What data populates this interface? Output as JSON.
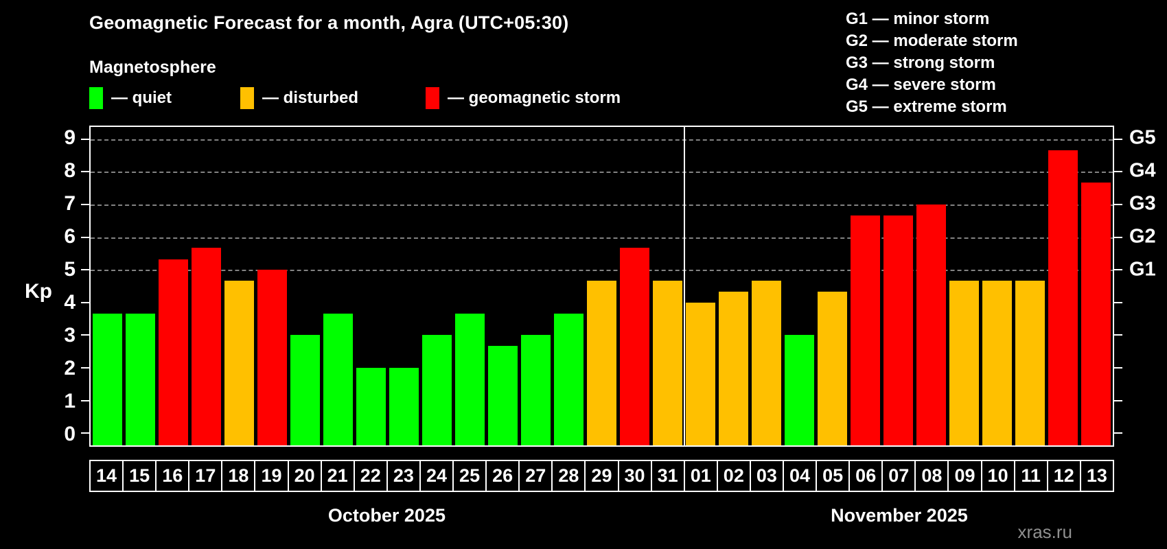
{
  "header": {
    "title": "Geomagnetic Forecast for a month, Agra (UTC+05:30)",
    "subtitle": "Magnetosphere"
  },
  "legend": {
    "items": [
      {
        "key": "quiet",
        "label": "— quiet",
        "color": "#00ff00"
      },
      {
        "key": "disturbed",
        "label": "— disturbed",
        "color": "#ffc000"
      },
      {
        "key": "storm",
        "label": "— geomagnetic storm",
        "color": "#ff0000"
      }
    ]
  },
  "g_legend": [
    "G1 — minor storm",
    "G2 — moderate storm",
    "G3 — strong storm",
    "G4 — severe storm",
    "G5 — extreme storm"
  ],
  "watermark": "xras.ru",
  "chart_data": {
    "type": "bar",
    "title": "Geomagnetic Forecast for a month, Agra (UTC+05:30)",
    "ylabel": "Kp",
    "ylim": [
      -0.375,
      9.375
    ],
    "grid": "dashed horizontal at Kp 5-9 only",
    "y_ticks": [
      0,
      1,
      2,
      3,
      4,
      5,
      6,
      7,
      8,
      9
    ],
    "gridlines_at": [
      5,
      6,
      7,
      8,
      9
    ],
    "right_ticks": [
      {
        "value": 5,
        "label": "G1"
      },
      {
        "value": 6,
        "label": "G2"
      },
      {
        "value": 7,
        "label": "G3"
      },
      {
        "value": 8,
        "label": "G4"
      },
      {
        "value": 9,
        "label": "G5"
      }
    ],
    "status_colors": {
      "quiet": "#00ff00",
      "disturbed": "#ffc000",
      "storm": "#ff0000"
    },
    "months": [
      {
        "label": "October 2025",
        "days": 18
      },
      {
        "label": "November 2025",
        "days": 13
      }
    ],
    "bars": [
      {
        "day": "14",
        "value": 3.67,
        "status": "quiet"
      },
      {
        "day": "15",
        "value": 3.67,
        "status": "quiet"
      },
      {
        "day": "16",
        "value": 5.33,
        "status": "storm"
      },
      {
        "day": "17",
        "value": 5.67,
        "status": "storm"
      },
      {
        "day": "18",
        "value": 4.67,
        "status": "disturbed"
      },
      {
        "day": "19",
        "value": 5.0,
        "status": "storm"
      },
      {
        "day": "20",
        "value": 3.0,
        "status": "quiet"
      },
      {
        "day": "21",
        "value": 3.67,
        "status": "quiet"
      },
      {
        "day": "22",
        "value": 2.0,
        "status": "quiet"
      },
      {
        "day": "23",
        "value": 2.0,
        "status": "quiet"
      },
      {
        "day": "24",
        "value": 3.0,
        "status": "quiet"
      },
      {
        "day": "25",
        "value": 3.67,
        "status": "quiet"
      },
      {
        "day": "26",
        "value": 2.67,
        "status": "quiet"
      },
      {
        "day": "27",
        "value": 3.0,
        "status": "quiet"
      },
      {
        "day": "28",
        "value": 3.67,
        "status": "quiet"
      },
      {
        "day": "29",
        "value": 4.67,
        "status": "disturbed"
      },
      {
        "day": "30",
        "value": 5.67,
        "status": "storm"
      },
      {
        "day": "31",
        "value": 4.67,
        "status": "disturbed"
      },
      {
        "day": "01",
        "value": 4.0,
        "status": "disturbed"
      },
      {
        "day": "02",
        "value": 4.33,
        "status": "disturbed"
      },
      {
        "day": "03",
        "value": 4.67,
        "status": "disturbed"
      },
      {
        "day": "04",
        "value": 3.0,
        "status": "quiet"
      },
      {
        "day": "05",
        "value": 4.33,
        "status": "disturbed"
      },
      {
        "day": "06",
        "value": 6.67,
        "status": "storm"
      },
      {
        "day": "07",
        "value": 6.67,
        "status": "storm"
      },
      {
        "day": "08",
        "value": 7.0,
        "status": "storm"
      },
      {
        "day": "09",
        "value": 4.67,
        "status": "disturbed"
      },
      {
        "day": "10",
        "value": 4.67,
        "status": "disturbed"
      },
      {
        "day": "11",
        "value": 4.67,
        "status": "disturbed"
      },
      {
        "day": "12",
        "value": 8.67,
        "status": "storm"
      },
      {
        "day": "13",
        "value": 7.67,
        "status": "storm"
      }
    ]
  }
}
